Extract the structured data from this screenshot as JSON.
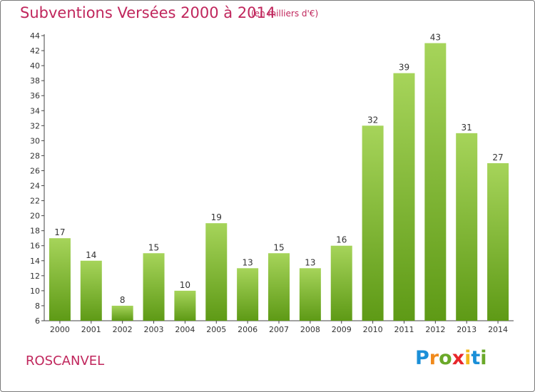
{
  "header": {
    "title": "Subventions Versées 2000 à 2014",
    "subtitle": "(en milliers d'€)"
  },
  "footer": {
    "place": "ROSCANVEL",
    "logo_letters": [
      {
        "ch": "P",
        "color": "#1a8fd8"
      },
      {
        "ch": "r",
        "color": "#f08a1c"
      },
      {
        "ch": "o",
        "color": "#6aa829"
      },
      {
        "ch": "x",
        "color": "#e8262a"
      },
      {
        "ch": "i",
        "color": "#f2b81b"
      },
      {
        "ch": "t",
        "color": "#1a8fd8"
      },
      {
        "ch": "i",
        "color": "#6aa829"
      }
    ]
  },
  "colors": {
    "title": "#c0265c",
    "bar_top": "#a6d45a",
    "bar_bottom": "#5e9a16"
  },
  "chart_data": {
    "type": "bar",
    "categories": [
      "2000",
      "2001",
      "2002",
      "2003",
      "2004",
      "2005",
      "2006",
      "2007",
      "2008",
      "2009",
      "2010",
      "2011",
      "2012",
      "2013",
      "2014"
    ],
    "values": [
      17,
      14,
      8,
      15,
      10,
      19,
      13,
      15,
      13,
      16,
      32,
      39,
      43,
      31,
      27
    ],
    "title": "Subventions Versées 2000 à 2014",
    "subtitle": "(en milliers d'€)",
    "ylim": [
      6,
      44
    ],
    "yticks": [
      6,
      8,
      10,
      12,
      14,
      16,
      18,
      20,
      22,
      24,
      26,
      28,
      30,
      32,
      34,
      36,
      38,
      40,
      42,
      44
    ],
    "grid": false,
    "data_labels": true
  }
}
